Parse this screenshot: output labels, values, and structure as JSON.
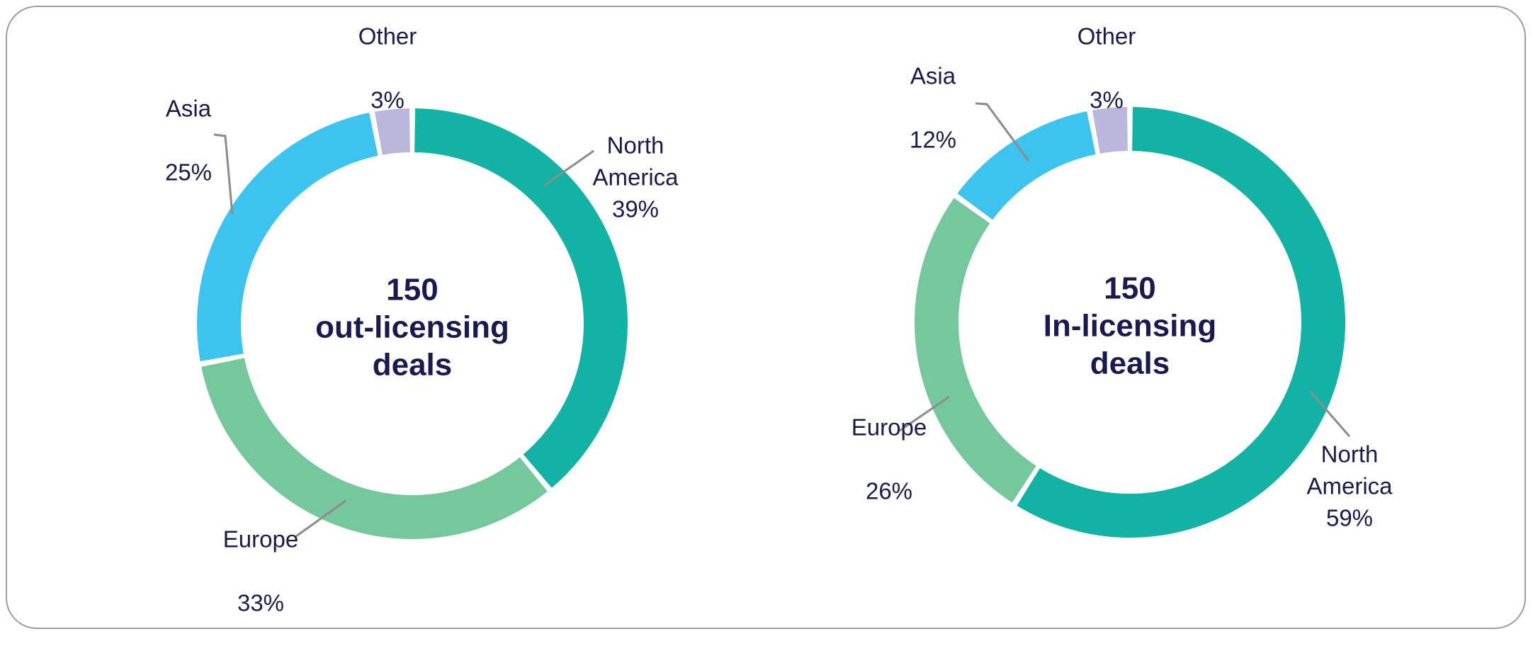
{
  "colors": {
    "north_america": "#12B2A4",
    "europe": "#75C79C",
    "asia": "#3CC4EE",
    "other": "#BBB7DC",
    "text_navy": "#1A1A52",
    "leader_line_gray": "#8C8C8C",
    "card_border_gray": "#9D9D9D",
    "background": "#FFFFFF"
  },
  "chart_data": [
    {
      "type": "pie",
      "subtype": "donut",
      "direction": "clockwise",
      "start_angle_deg": 0,
      "total_deals": 150,
      "center_label": {
        "line1": "150",
        "line2": "out-licensing",
        "line3": "deals"
      },
      "segments": [
        {
          "label": "North America",
          "value": 39,
          "display": "39%",
          "color": "#12B2A4"
        },
        {
          "label": "Europe",
          "value": 33,
          "display": "33%",
          "color": "#75C79C"
        },
        {
          "label": "Asia",
          "value": 25,
          "display": "25%",
          "color": "#3CC4EE"
        },
        {
          "label": "Other",
          "value": 3,
          "display": "3%",
          "color": "#BBB7DC"
        }
      ]
    },
    {
      "type": "pie",
      "subtype": "donut",
      "direction": "clockwise",
      "start_angle_deg": 0,
      "total_deals": 150,
      "center_label": {
        "line1": "150",
        "line2": "In-licensing",
        "line3": "deals"
      },
      "segments": [
        {
          "label": "North America",
          "value": 59,
          "display": "59%",
          "color": "#12B2A4"
        },
        {
          "label": "Europe",
          "value": 26,
          "display": "26%",
          "color": "#75C79C"
        },
        {
          "label": "Asia",
          "value": 12,
          "display": "12%",
          "color": "#3CC4EE"
        },
        {
          "label": "Other",
          "value": 3,
          "display": "3%",
          "color": "#BBB7DC"
        }
      ]
    }
  ]
}
